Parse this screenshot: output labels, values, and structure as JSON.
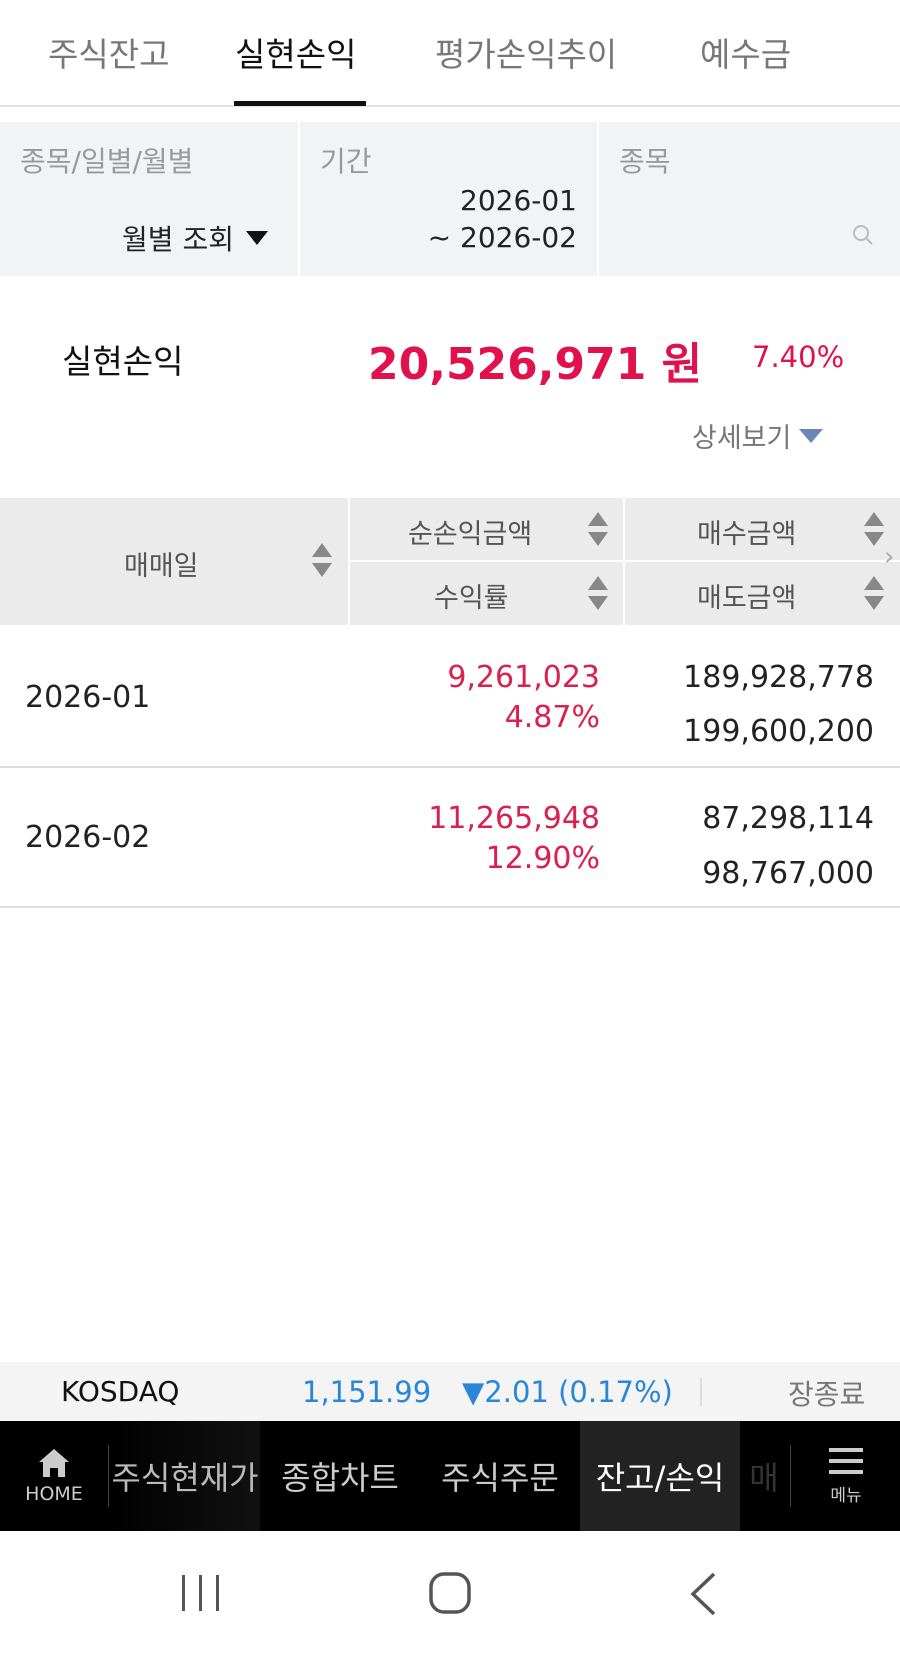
{
  "tabs": [
    {
      "label": "주식잔고"
    },
    {
      "label": "실현손익",
      "active": true
    },
    {
      "label": "평가손익추이"
    },
    {
      "label": "예수금"
    }
  ],
  "filter": {
    "type_label": "종목/일별/월별",
    "type_value": "월별 조회",
    "period_label": "기간",
    "period_from": "2026-01",
    "period_to": "~ 2026-02",
    "stock_label": "종목",
    "stock_value": ""
  },
  "summary": {
    "label": "실현손익",
    "amount": "20,526,971 원",
    "rate": "7.40%",
    "detail_label": "상세보기"
  },
  "table": {
    "headers": {
      "date": "매매일",
      "net_profit": "순손익금액",
      "rate": "수익률",
      "buy": "매수금액",
      "sell": "매도금액"
    },
    "rows": [
      {
        "date": "2026-01",
        "net_profit": "9,261,023",
        "rate": "4.87%",
        "buy": "189,928,778",
        "sell": "199,600,200"
      },
      {
        "date": "2026-02",
        "net_profit": "11,265,948",
        "rate": "12.90%",
        "buy": "87,298,114",
        "sell": "98,767,000"
      }
    ]
  },
  "ticker": {
    "name": "KOSDAQ",
    "value": "1,151.99",
    "change": "▼2.01 (0.17%)",
    "status": "장종료"
  },
  "bottom_nav": {
    "home": "HOME",
    "items": [
      "주식현재가",
      "종합차트",
      "주식주문",
      "잔고/손익",
      "매"
    ],
    "menu": "메뉴"
  },
  "colors": {
    "accent_red": "#e0114d",
    "ticker_blue": "#2a86d8"
  }
}
